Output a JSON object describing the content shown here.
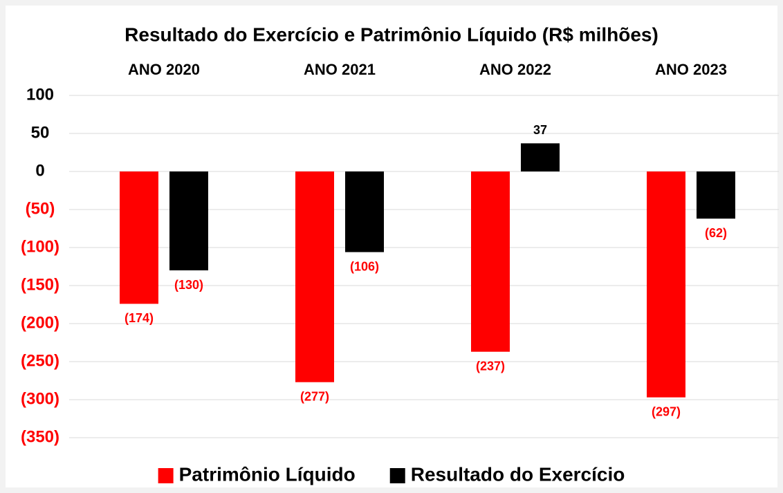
{
  "chart_data": {
    "type": "bar",
    "title": "Resultado do Exercício e Patrimônio Líquido (R$ milhões)",
    "categories": [
      "ANO 2020",
      "ANO 2021",
      "ANO 2022",
      "ANO 2023"
    ],
    "series": [
      {
        "name": "Patrimônio Líquido",
        "color": "#ff0000",
        "values": [
          -174,
          -277,
          -237,
          -297
        ],
        "value_labels": [
          "(174)",
          "(277)",
          "(237)",
          "(297)"
        ]
      },
      {
        "name": "Resultado do Exercício",
        "color": "#000000",
        "values": [
          -130,
          -106,
          37,
          -62
        ],
        "value_labels": [
          "(130)",
          "(106)",
          "37",
          "(62)"
        ]
      }
    ],
    "ylim": [
      -350,
      100
    ],
    "yticks": [
      100,
      50,
      0,
      {
        "value": -50,
        "label": "(50)"
      },
      {
        "value": -100,
        "label": "(100)"
      },
      {
        "value": -150,
        "label": "(150)"
      },
      {
        "value": -200,
        "label": "(200)"
      },
      {
        "value": -250,
        "label": "(250)"
      },
      {
        "value": -300,
        "label": "(300)"
      },
      {
        "value": -350,
        "label": "(350)"
      }
    ],
    "negative_color": "#ff0000",
    "grid": true,
    "legend": "bottom"
  }
}
